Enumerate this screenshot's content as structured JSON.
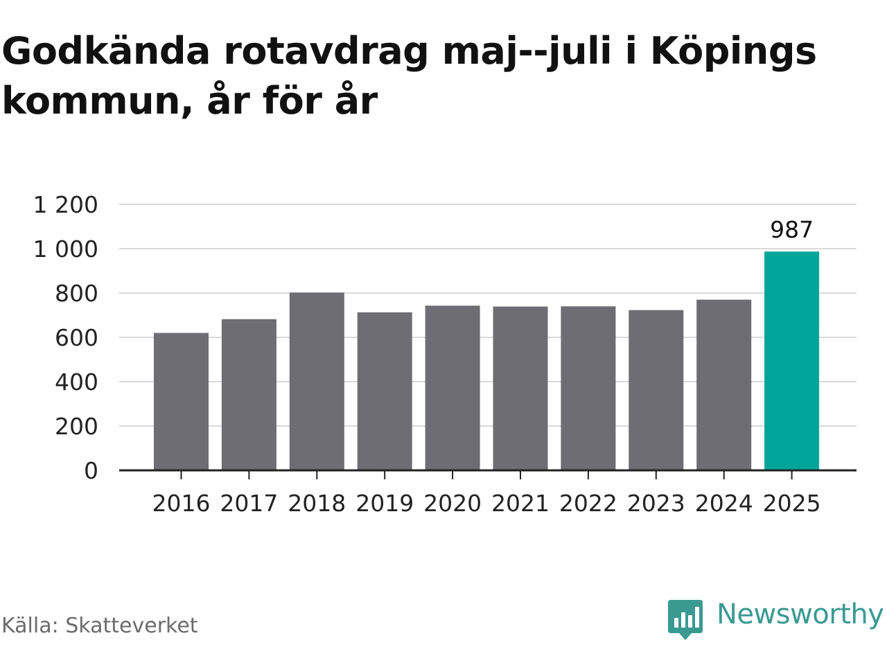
{
  "title": "Godkända rotavdrag maj--juli i Köpings kommun, år för år",
  "source": "Källa: Skatteverket",
  "brand": {
    "name": "Newsworthy",
    "icon": "newsworthy-logo-icon",
    "color": "#3a9a92"
  },
  "colors": {
    "bar": "#6e6d74",
    "highlight": "#00a59a",
    "grid": "#d9d9d9",
    "axis": "#222222"
  },
  "chart_data": {
    "type": "bar",
    "categories": [
      "2016",
      "2017",
      "2018",
      "2019",
      "2020",
      "2021",
      "2022",
      "2023",
      "2024",
      "2025"
    ],
    "values": [
      620,
      682,
      802,
      713,
      743,
      739,
      740,
      723,
      770,
      987
    ],
    "highlight_index": 9,
    "data_labels": [
      null,
      null,
      null,
      null,
      null,
      null,
      null,
      null,
      null,
      "987"
    ],
    "ylim": [
      0,
      1200
    ],
    "yticks": [
      0,
      200,
      400,
      600,
      800,
      1000,
      1200
    ],
    "ytick_labels": [
      "0",
      "200",
      "400",
      "600",
      "800",
      "1 000",
      "1 200"
    ],
    "grid": true,
    "legend": "none",
    "xlabel": "",
    "ylabel": ""
  }
}
